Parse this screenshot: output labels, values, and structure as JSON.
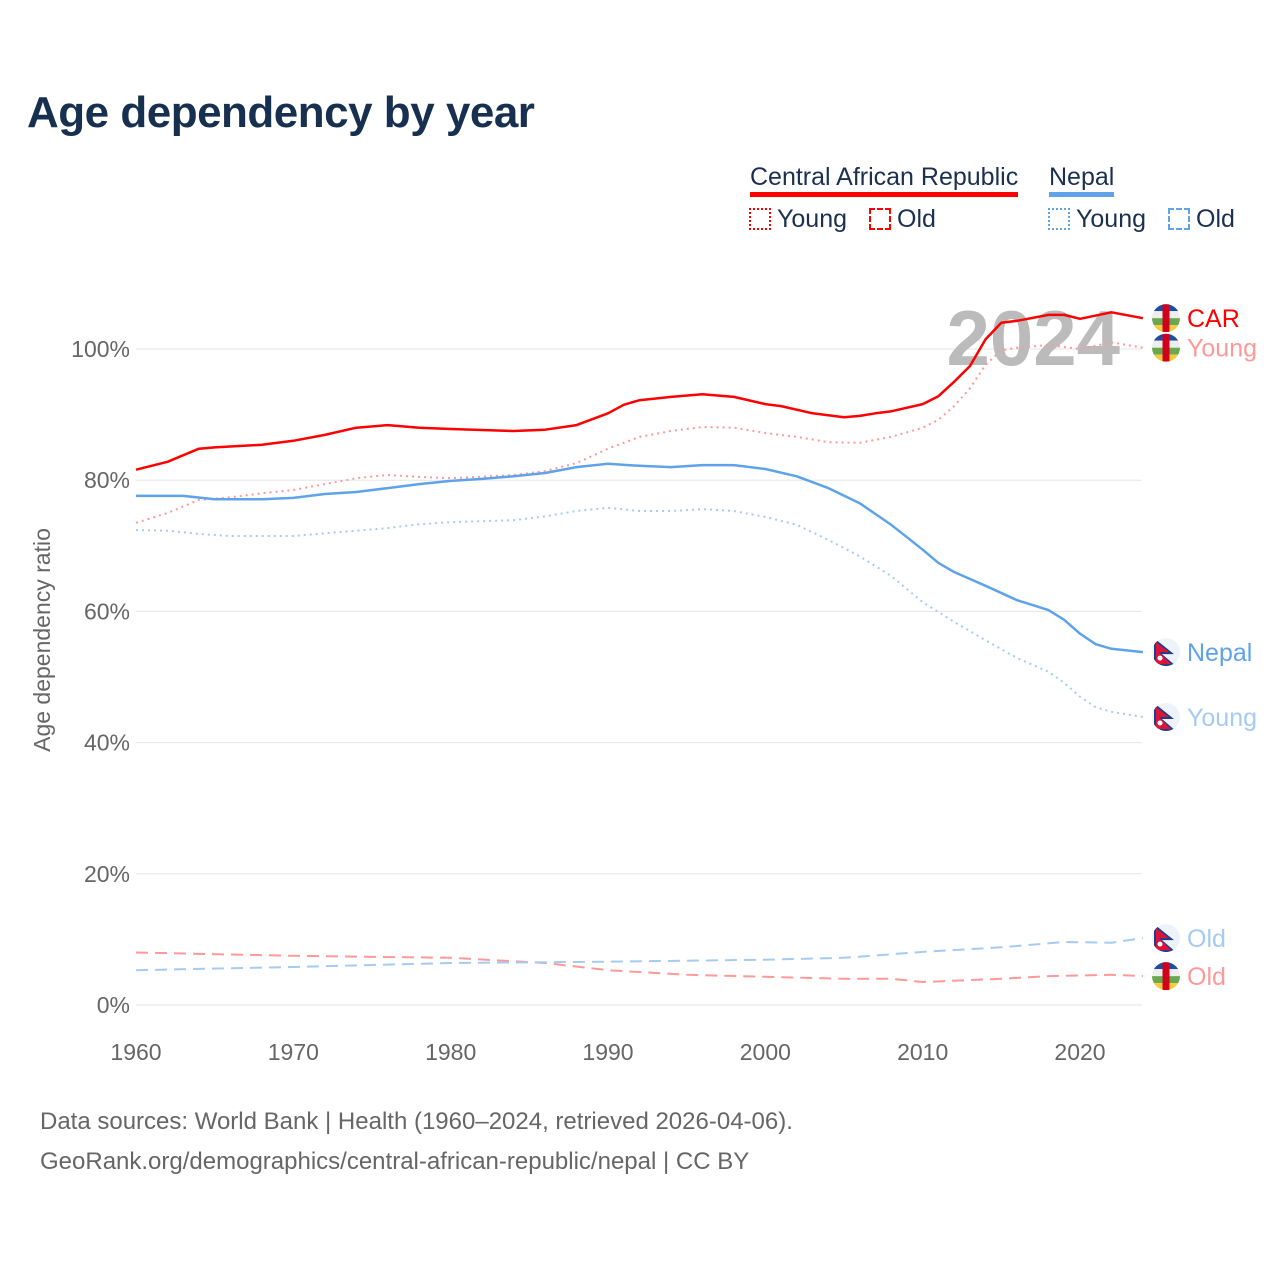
{
  "title": "Age dependency by year",
  "legend": {
    "groups": [
      {
        "name": "Central African Republic",
        "color": "#ff0000",
        "young": "Young",
        "old": "Old"
      },
      {
        "name": "Nepal",
        "color": "#5ea3ea",
        "young": "Young",
        "old": "Old"
      }
    ]
  },
  "footer": {
    "line1": "Data sources: World Bank | Health (1960–2024, retrieved 2026-04-06).",
    "line2": "GeoRank.org/demographics/central-african-republic/nepal | CC BY"
  },
  "chart_data": {
    "type": "line",
    "title": "Age dependency by year",
    "ylabel": "Age dependency ratio",
    "xlabel": "",
    "xlim": [
      1960,
      2024
    ],
    "ylim": [
      0,
      110
    ],
    "x_ticks": [
      "1960",
      "1970",
      "1980",
      "1990",
      "2000",
      "2010",
      "2020"
    ],
    "y_ticks": [
      "0%",
      "20%",
      "40%",
      "60%",
      "80%",
      "100%"
    ],
    "watermark": "2024",
    "series": [
      {
        "name": "Central African Republic",
        "end_label": "CAR",
        "color": "#ff0000",
        "style": "solid",
        "flag": "car",
        "points": [
          [
            1960,
            81.6
          ],
          [
            1962,
            82.8
          ],
          [
            1964,
            84.8
          ],
          [
            1965,
            85
          ],
          [
            1968,
            85.4
          ],
          [
            1970,
            86
          ],
          [
            1972,
            86.9
          ],
          [
            1974,
            88
          ],
          [
            1976,
            88.4
          ],
          [
            1978,
            88
          ],
          [
            1980,
            87.8
          ],
          [
            1984,
            87.5
          ],
          [
            1986,
            87.7
          ],
          [
            1988,
            88.4
          ],
          [
            1990,
            90.2
          ],
          [
            1991,
            91.5
          ],
          [
            1992,
            92.2
          ],
          [
            1994,
            92.7
          ],
          [
            1996,
            93.1
          ],
          [
            1998,
            92.7
          ],
          [
            2000,
            91.6
          ],
          [
            2001,
            91.3
          ],
          [
            2003,
            90.2
          ],
          [
            2005,
            89.6
          ],
          [
            2006,
            89.8
          ],
          [
            2007,
            90.2
          ],
          [
            2008,
            90.5
          ],
          [
            2010,
            91.6
          ],
          [
            2011,
            92.8
          ],
          [
            2012,
            95
          ],
          [
            2013,
            97.4
          ],
          [
            2014,
            101.5
          ],
          [
            2015,
            104
          ],
          [
            2016,
            104.3
          ],
          [
            2018,
            105.2
          ],
          [
            2019,
            105.2
          ],
          [
            2020,
            104.6
          ],
          [
            2022,
            105.6
          ],
          [
            2024,
            104.7
          ]
        ]
      },
      {
        "name": "Central African Republic Young",
        "end_label": "Young",
        "color": "#ff9999",
        "style": "dotted",
        "flag": "car",
        "points": [
          [
            1960,
            73.5
          ],
          [
            1962,
            75
          ],
          [
            1964,
            77
          ],
          [
            1966,
            77.4
          ],
          [
            1968,
            78
          ],
          [
            1970,
            78.5
          ],
          [
            1972,
            79.4
          ],
          [
            1974,
            80.3
          ],
          [
            1976,
            80.8
          ],
          [
            1978,
            80.5
          ],
          [
            1980,
            80.3
          ],
          [
            1984,
            80.8
          ],
          [
            1986,
            81.4
          ],
          [
            1988,
            82.6
          ],
          [
            1990,
            84.8
          ],
          [
            1992,
            86.6
          ],
          [
            1994,
            87.5
          ],
          [
            1996,
            88.1
          ],
          [
            1998,
            88
          ],
          [
            2000,
            87.2
          ],
          [
            2002,
            86.6
          ],
          [
            2004,
            85.8
          ],
          [
            2006,
            85.7
          ],
          [
            2008,
            86.6
          ],
          [
            2010,
            88
          ],
          [
            2011,
            89.2
          ],
          [
            2012,
            91.3
          ],
          [
            2013,
            94
          ],
          [
            2014,
            97.6
          ],
          [
            2015,
            99.8
          ],
          [
            2016,
            100.2
          ],
          [
            2018,
            100.6
          ],
          [
            2020,
            100
          ],
          [
            2022,
            101
          ],
          [
            2024,
            100.2
          ]
        ]
      },
      {
        "name": "Central African Republic Old",
        "end_label": "Old",
        "color": "#ff9999",
        "style": "dashed",
        "flag": "car",
        "points": [
          [
            1960,
            8
          ],
          [
            1970,
            7.5
          ],
          [
            1980,
            7.2
          ],
          [
            1986,
            6.4
          ],
          [
            1990,
            5.3
          ],
          [
            1995,
            4.6
          ],
          [
            2000,
            4.3
          ],
          [
            2005,
            4.0
          ],
          [
            2008,
            4.0
          ],
          [
            2010,
            3.5
          ],
          [
            2015,
            4.0
          ],
          [
            2018,
            4.4
          ],
          [
            2022,
            4.6
          ],
          [
            2024,
            4.4
          ]
        ]
      },
      {
        "name": "Nepal",
        "end_label": "Nepal",
        "color": "#5ea3ea",
        "style": "solid",
        "flag": "nepal",
        "points": [
          [
            1960,
            77.6
          ],
          [
            1963,
            77.6
          ],
          [
            1965,
            77.1
          ],
          [
            1968,
            77.1
          ],
          [
            1970,
            77.3
          ],
          [
            1972,
            77.9
          ],
          [
            1974,
            78.2
          ],
          [
            1976,
            78.8
          ],
          [
            1978,
            79.4
          ],
          [
            1980,
            79.9
          ],
          [
            1982,
            80.2
          ],
          [
            1984,
            80.6
          ],
          [
            1986,
            81.1
          ],
          [
            1988,
            82
          ],
          [
            1990,
            82.5
          ],
          [
            1992,
            82.2
          ],
          [
            1994,
            82
          ],
          [
            1996,
            82.3
          ],
          [
            1998,
            82.3
          ],
          [
            2000,
            81.7
          ],
          [
            2002,
            80.6
          ],
          [
            2004,
            78.8
          ],
          [
            2006,
            76.5
          ],
          [
            2008,
            73.2
          ],
          [
            2010,
            69.4
          ],
          [
            2011,
            67.4
          ],
          [
            2012,
            66
          ],
          [
            2014,
            63.9
          ],
          [
            2016,
            61.7
          ],
          [
            2018,
            60.2
          ],
          [
            2019,
            58.7
          ],
          [
            2020,
            56.6
          ],
          [
            2021,
            55
          ],
          [
            2022,
            54.3
          ],
          [
            2024,
            53.8
          ]
        ]
      },
      {
        "name": "Nepal Young",
        "end_label": "Young",
        "color": "#a6cbf2",
        "style": "dotted",
        "flag": "nepal",
        "points": [
          [
            1960,
            72.4
          ],
          [
            1962,
            72.3
          ],
          [
            1964,
            71.8
          ],
          [
            1966,
            71.5
          ],
          [
            1970,
            71.5
          ],
          [
            1972,
            71.9
          ],
          [
            1974,
            72.3
          ],
          [
            1976,
            72.7
          ],
          [
            1978,
            73.3
          ],
          [
            1980,
            73.6
          ],
          [
            1984,
            73.9
          ],
          [
            1986,
            74.5
          ],
          [
            1988,
            75.3
          ],
          [
            1990,
            75.8
          ],
          [
            1992,
            75.3
          ],
          [
            1994,
            75.3
          ],
          [
            1996,
            75.6
          ],
          [
            1998,
            75.3
          ],
          [
            2000,
            74.4
          ],
          [
            2002,
            73.2
          ],
          [
            2004,
            70.9
          ],
          [
            2006,
            68.4
          ],
          [
            2008,
            65.4
          ],
          [
            2010,
            61.4
          ],
          [
            2012,
            58.4
          ],
          [
            2014,
            55.6
          ],
          [
            2016,
            52.9
          ],
          [
            2018,
            50.8
          ],
          [
            2019,
            49.1
          ],
          [
            2020,
            47
          ],
          [
            2021,
            45.4
          ],
          [
            2022,
            44.7
          ],
          [
            2024,
            43.9
          ]
        ]
      },
      {
        "name": "Nepal Old",
        "end_label": "Old",
        "color": "#a6cbf2",
        "style": "dashed",
        "flag": "nepal",
        "points": [
          [
            1960,
            5.3
          ],
          [
            1970,
            5.8
          ],
          [
            1980,
            6.4
          ],
          [
            1990,
            6.6
          ],
          [
            2000,
            6.9
          ],
          [
            2005,
            7.2
          ],
          [
            2010,
            8.1
          ],
          [
            2015,
            8.8
          ],
          [
            2019,
            9.6
          ],
          [
            2022,
            9.5
          ],
          [
            2024,
            10.2
          ]
        ]
      }
    ]
  }
}
